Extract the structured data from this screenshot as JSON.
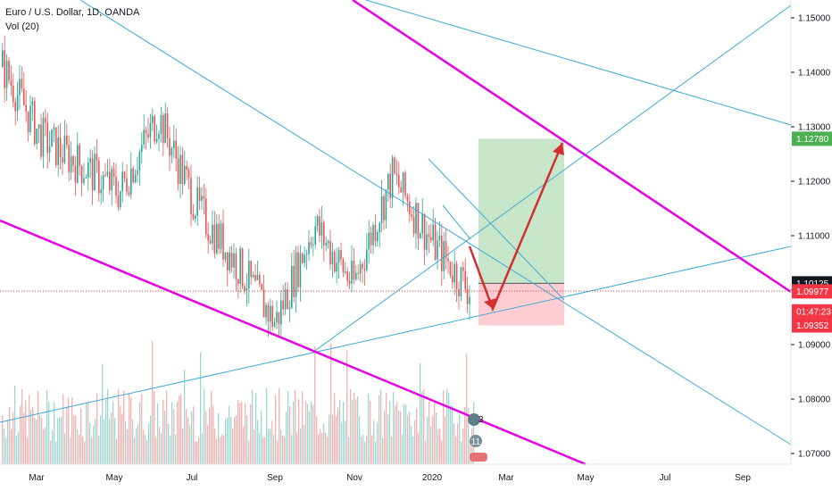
{
  "legend": {
    "symbol": "Euro / U.S. Dollar, 1D, OANDA",
    "volume": "Vol (20)"
  },
  "price_axis": {
    "ticks": [
      "1.15000",
      "1.14000",
      "1.13000",
      "1.12000",
      "1.11000",
      "1.10000",
      "1.09000",
      "1.08000",
      "1.07000"
    ],
    "tick_values": [
      1.15,
      1.14,
      1.13,
      1.12,
      1.11,
      1.1,
      1.09,
      1.08,
      1.07
    ],
    "tags": [
      {
        "label": "1.12780",
        "value": 1.1278,
        "color": "#4caf50"
      },
      {
        "label": "1.10125",
        "value": 1.10125,
        "color": "#131722"
      },
      {
        "label": "1.09977",
        "value": 1.09977,
        "color": "#f23645"
      },
      {
        "label": "01:47:23",
        "value": 1.0961,
        "color": "#f23645"
      },
      {
        "label": "1.09352",
        "value": 1.09352,
        "color": "#f23645"
      }
    ]
  },
  "time_axis": {
    "labels": [
      "Mar",
      "May",
      "Jul",
      "Sep",
      "Nov",
      "2020",
      "Mar",
      "May",
      "Jul",
      "Sep"
    ]
  },
  "badges": {
    "ideas_count": "3",
    "events_count": "11"
  },
  "chart_data": {
    "type": "candlestick",
    "title": "Euro / U.S. Dollar, 1D, OANDA",
    "indicator": "Vol (20)",
    "ylim": [
      1.068,
      1.158
    ],
    "last_price": 1.09977,
    "series_close_approx": [
      {
        "x": "2019-02",
        "y": 1.141
      },
      {
        "x": "2019-03",
        "y": 1.128
      },
      {
        "x": "2019-04",
        "y": 1.123
      },
      {
        "x": "2019-05",
        "y": 1.118
      },
      {
        "x": "2019-06",
        "y": 1.132
      },
      {
        "x": "2019-07",
        "y": 1.115
      },
      {
        "x": "2019-08",
        "y": 1.105
      },
      {
        "x": "2019-09",
        "y": 1.094
      },
      {
        "x": "2019-10",
        "y": 1.112
      },
      {
        "x": "2019-11",
        "y": 1.101
      },
      {
        "x": "2019-12",
        "y": 1.121
      },
      {
        "x": "2020-01",
        "y": 1.109
      },
      {
        "x": "2020-02",
        "y": 1.0998
      }
    ],
    "position": {
      "entry": 1.10125,
      "target": 1.1278,
      "stop": 1.09352
    }
  },
  "colors": {
    "up": "#26a69a",
    "down": "#ef5350",
    "trend": "#3fa9d8",
    "channel": "#e600e6",
    "projection": "#d32f2f",
    "profit_zone": "#c8e6c9",
    "loss_zone": "#ffcdd2"
  }
}
